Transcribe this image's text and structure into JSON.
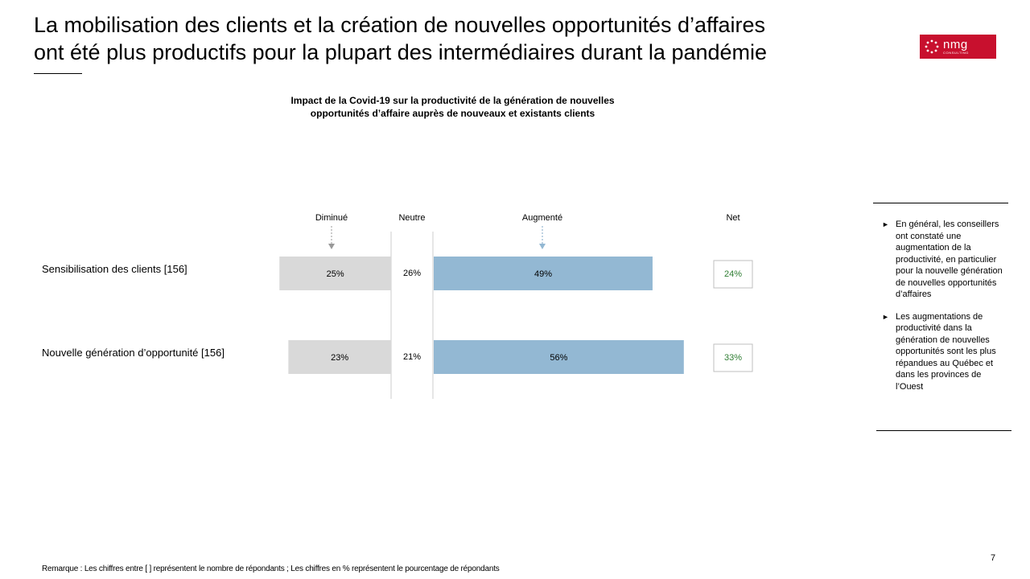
{
  "slide": {
    "title_line1": "La mobilisation des clients et la création de nouvelles opportunités d’affaires",
    "title_line2": "ont été plus productifs pour la plupart des intermédiaires durant la pandémie",
    "logo_text": "nmg",
    "logo_subtext": "CONSULTING",
    "footnote": "Remarque : Les chiffres entre [ ] représentent le nombre de répondants ; Les chiffres en % représentent le pourcentage de répondants",
    "page_number": "7"
  },
  "chart_data": {
    "type": "bar",
    "stacked": true,
    "orientation": "horizontal",
    "title_line1": "Impact de la Covid-19 sur la productivité de la génération de nouvelles",
    "title_line2": "opportunités d’affaire auprès de nouveaux et existants clients",
    "column_headers": {
      "decreased": "Diminué",
      "neutral": "Neutre",
      "increased": "Augmenté",
      "net": "Net"
    },
    "categories": [
      "Sensibilisation des clients [156]",
      "Nouvelle génération d’opportunité [156]"
    ],
    "series": [
      {
        "name": "Diminué",
        "values": [
          25,
          23
        ],
        "labels": [
          "25%",
          "23%"
        ],
        "color": "#d9d9d9"
      },
      {
        "name": "Neutre",
        "values": [
          26,
          21
        ],
        "labels": [
          "26%",
          "21%"
        ],
        "color": "#ffffff"
      },
      {
        "name": "Augmenté",
        "values": [
          49,
          56
        ],
        "labels": [
          "49%",
          "56%"
        ],
        "color": "#93b8d3"
      }
    ],
    "net": {
      "values": [
        24,
        33
      ],
      "labels": [
        "24%",
        "33%"
      ],
      "color": "#2e7d32"
    },
    "unit": "%"
  },
  "sidebar": {
    "bullets": [
      "En général, les conseillers ont constaté une augmentation de la productivité, en particulier pour la nouvelle génération de nouvelles opportunités d’affaires",
      "Les augmentations de productivité dans la génération de nouvelles opportunités sont les plus répandues au Québec et dans les provinces de l’Ouest"
    ],
    "bullet_glyph": "►"
  }
}
